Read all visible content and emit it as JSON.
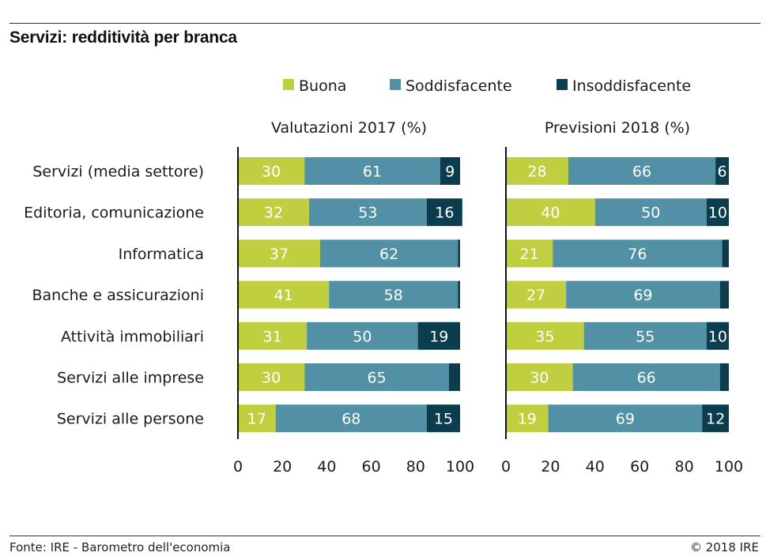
{
  "title": "Servizi: redditività per branca",
  "source": "Fonte: IRE - Barometro dell'economia",
  "copyright": "© 2018 IRE",
  "chart_data": {
    "type": "bar",
    "orientation": "horizontal",
    "stacked": true,
    "legend_position": "top",
    "categories": [
      "Servizi (media settore)",
      "Editoria, comunicazione",
      "Informatica",
      "Banche e assicurazioni",
      "Attività immobiliari",
      "Servizi alle imprese",
      "Servizi alle persone"
    ],
    "series_colors": {
      "Buona": "#bfcf3f",
      "Soddisfacente": "#5290a6",
      "Insoddisfacente": "#0c3d4f"
    },
    "panels": [
      {
        "title": "Valutazioni 2017 (%)",
        "xlim": [
          0,
          100
        ],
        "xticks": [
          0,
          20,
          40,
          60,
          80,
          100
        ],
        "series": [
          {
            "name": "Buona",
            "values": [
              30,
              32,
              37,
              41,
              31,
              30,
              17
            ]
          },
          {
            "name": "Soddisfacente",
            "values": [
              61,
              53,
              62,
              58,
              50,
              65,
              68
            ]
          },
          {
            "name": "Insoddisfacente",
            "values": [
              9,
              16,
              1,
              1,
              19,
              5,
              15
            ]
          }
        ],
        "labels": {
          "Buona": [
            "30",
            "32",
            "37",
            "41",
            "31",
            "30",
            "17"
          ],
          "Soddisfacente": [
            "61",
            "53",
            "62",
            "58",
            "50",
            "65",
            "68"
          ],
          "Insoddisfacente": [
            "9",
            "16",
            "",
            "",
            "19",
            "",
            "15"
          ]
        }
      },
      {
        "title": "Previsioni 2018 (%)",
        "xlim": [
          0,
          100
        ],
        "xticks": [
          0,
          20,
          40,
          60,
          80,
          100
        ],
        "series": [
          {
            "name": "Buona",
            "values": [
              28,
              40,
              21,
              27,
              35,
              30,
              19
            ]
          },
          {
            "name": "Soddisfacente",
            "values": [
              66,
              50,
              76,
              69,
              55,
              66,
              69
            ]
          },
          {
            "name": "Insoddisfacente",
            "values": [
              6,
              10,
              3,
              4,
              10,
              4,
              12
            ]
          }
        ],
        "labels": {
          "Buona": [
            "28",
            "40",
            "21",
            "27",
            "35",
            "30",
            "19"
          ],
          "Soddisfacente": [
            "66",
            "50",
            "76",
            "69",
            "55",
            "66",
            "69"
          ],
          "Insoddisfacente": [
            "6",
            "10",
            "",
            "",
            "10",
            "",
            "12"
          ]
        }
      }
    ]
  }
}
